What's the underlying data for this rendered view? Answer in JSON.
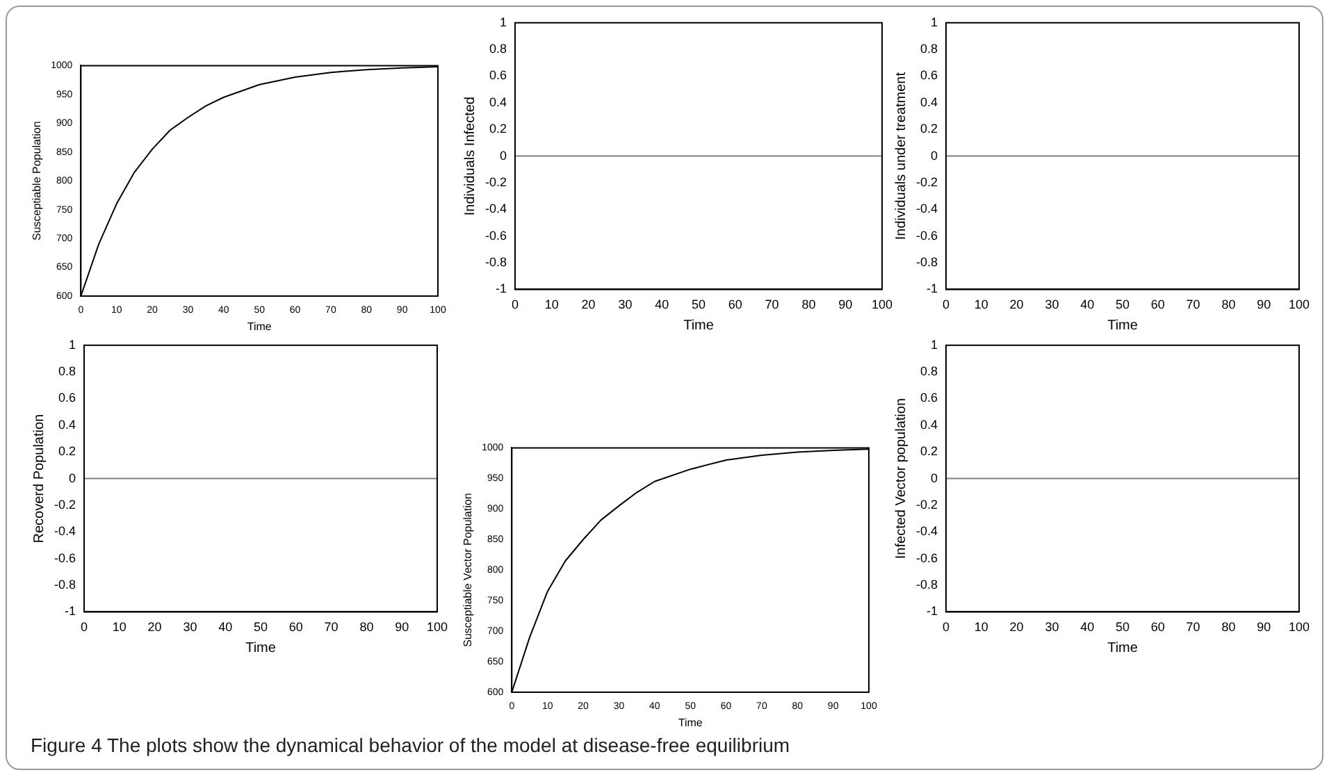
{
  "chart_data": [
    {
      "type": "line",
      "xlabel": "Time",
      "ylabel": "Susceptiable Population",
      "x": [
        0,
        5,
        10,
        15,
        20,
        25,
        30,
        35,
        40,
        50,
        60,
        70,
        80,
        90,
        100
      ],
      "series": [
        {
          "color": "#000000",
          "values": [
            600,
            690,
            760,
            815,
            855,
            888,
            910,
            930,
            945,
            967,
            980,
            988,
            993,
            996,
            998
          ]
        }
      ],
      "xlim": [
        0,
        100
      ],
      "xticks": [
        0,
        10,
        20,
        30,
        40,
        50,
        60,
        70,
        80,
        90,
        100
      ],
      "ylim": [
        600,
        1000
      ],
      "yticks": [
        600,
        650,
        700,
        750,
        800,
        850,
        900,
        950,
        1000
      ],
      "grid": false,
      "legend": false,
      "annotations": [
        "Figure 4 The plots show the dynamical behavior of the model at disease-free equilibrium"
      ]
    },
    {
      "type": "line",
      "xlabel": "Time",
      "ylabel": "Individuals Infected",
      "x": [
        0,
        100
      ],
      "series": [
        {
          "color": "#7f7f7f",
          "values": [
            0,
            0
          ]
        }
      ],
      "xlim": [
        0,
        100
      ],
      "xticks": [
        0,
        10,
        20,
        30,
        40,
        50,
        60,
        70,
        80,
        90,
        100
      ],
      "ylim": [
        -1,
        1
      ],
      "yticks": [
        -1,
        -0.8,
        -0.6,
        -0.4,
        -0.2,
        0,
        0.2,
        0.4,
        0.6,
        0.8,
        1
      ],
      "grid": false,
      "legend": false
    },
    {
      "type": "line",
      "xlabel": "Time",
      "ylabel": "Individuals under treatment",
      "x": [
        0,
        100
      ],
      "series": [
        {
          "color": "#7f7f7f",
          "values": [
            0,
            0
          ]
        }
      ],
      "xlim": [
        0,
        100
      ],
      "xticks": [
        0,
        10,
        20,
        30,
        40,
        50,
        60,
        70,
        80,
        90,
        100
      ],
      "ylim": [
        -1,
        1
      ],
      "yticks": [
        -1,
        -0.8,
        -0.6,
        -0.4,
        -0.2,
        0,
        0.2,
        0.4,
        0.6,
        0.8,
        1
      ],
      "grid": false,
      "legend": false
    },
    {
      "type": "line",
      "xlabel": "Time",
      "ylabel": "Recoverd Population",
      "x": [
        0,
        100
      ],
      "series": [
        {
          "color": "#7f7f7f",
          "values": [
            0,
            0
          ]
        }
      ],
      "xlim": [
        0,
        100
      ],
      "xticks": [
        0,
        10,
        20,
        30,
        40,
        50,
        60,
        70,
        80,
        90,
        100
      ],
      "ylim": [
        -1,
        1
      ],
      "yticks": [
        -1,
        -0.8,
        -0.6,
        -0.4,
        -0.2,
        0,
        0.2,
        0.4,
        0.6,
        0.8,
        1
      ],
      "grid": false,
      "legend": false
    },
    {
      "type": "line",
      "xlabel": "Time",
      "ylabel": "Susceptiable Vector Population",
      "x": [
        0,
        5,
        10,
        15,
        20,
        25,
        30,
        35,
        40,
        50,
        60,
        70,
        80,
        90,
        100
      ],
      "series": [
        {
          "color": "#000000",
          "values": [
            600,
            690,
            765,
            815,
            850,
            882,
            905,
            927,
            945,
            965,
            980,
            988,
            993,
            996,
            998
          ]
        }
      ],
      "xlim": [
        0,
        100
      ],
      "xticks": [
        0,
        10,
        20,
        30,
        40,
        50,
        60,
        70,
        80,
        90,
        100
      ],
      "ylim": [
        600,
        1000
      ],
      "yticks": [
        600,
        650,
        700,
        750,
        800,
        850,
        900,
        950,
        1000
      ],
      "grid": false,
      "legend": false
    },
    {
      "type": "line",
      "xlabel": "Time",
      "ylabel": "Infected Vector population",
      "x": [
        0,
        100
      ],
      "series": [
        {
          "color": "#7f7f7f",
          "values": [
            0,
            0
          ]
        }
      ],
      "xlim": [
        0,
        100
      ],
      "xticks": [
        0,
        10,
        20,
        30,
        40,
        50,
        60,
        70,
        80,
        90,
        100
      ],
      "ylim": [
        -1,
        1
      ],
      "yticks": [
        -1,
        -0.8,
        -0.6,
        -0.4,
        -0.2,
        0,
        0.2,
        0.4,
        0.6,
        0.8,
        1
      ],
      "grid": false,
      "legend": false
    }
  ]
}
